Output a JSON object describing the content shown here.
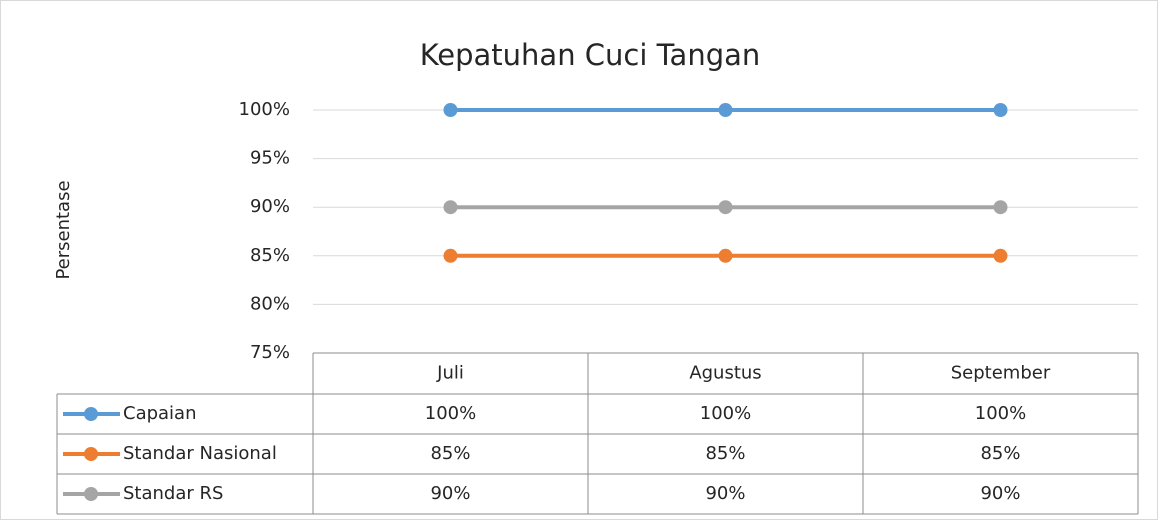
{
  "chart_data": {
    "type": "line",
    "title": "Kepatuhan Cuci Tangan",
    "y_label": "Persentase",
    "categories": [
      "Juli",
      "Agustus",
      "September"
    ],
    "series": [
      {
        "name": "Capaian",
        "color": "#5b9bd5",
        "values": [
          100,
          100,
          100
        ],
        "value_labels": [
          "100%",
          "100%",
          "100%"
        ]
      },
      {
        "name": "Standar Nasional",
        "color": "#ed7d31",
        "values": [
          85,
          85,
          85
        ],
        "value_labels": [
          "85%",
          "85%",
          "85%"
        ]
      },
      {
        "name": "Standar RS",
        "color": "#a5a5a5",
        "values": [
          90,
          90,
          90
        ],
        "value_labels": [
          "90%",
          "90%",
          "90%"
        ]
      }
    ],
    "ylim": [
      75,
      100
    ],
    "yticks": [
      {
        "value": 75,
        "label": "75%"
      },
      {
        "value": 80,
        "label": "80%"
      },
      {
        "value": 85,
        "label": "85%"
      },
      {
        "value": 90,
        "label": "90%"
      },
      {
        "value": 95,
        "label": "95%"
      },
      {
        "value": 100,
        "label": "100%"
      }
    ],
    "grid": true,
    "data_table": true
  }
}
